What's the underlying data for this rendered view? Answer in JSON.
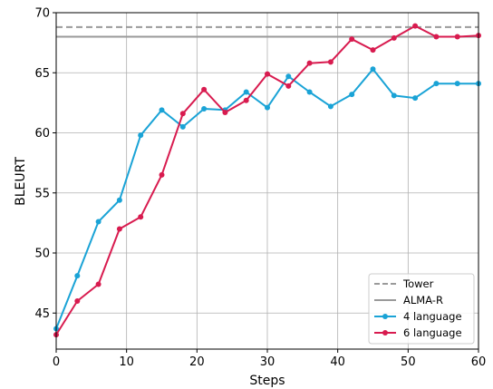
{
  "chart_data": {
    "type": "line",
    "xlabel": "Steps",
    "ylabel": "BLEURT",
    "xlim": [
      0,
      60
    ],
    "ylim": [
      42,
      70
    ],
    "xticks": [
      0,
      10,
      20,
      30,
      40,
      50,
      60
    ],
    "yticks": [
      45,
      50,
      55,
      60,
      65,
      70
    ],
    "grid": true,
    "legend_position": "bottom-right",
    "reference_lines": [
      {
        "name": "Tower",
        "y": 68.8,
        "color": "#9a9a9a",
        "style": "dashed"
      },
      {
        "name": "ALMA-R",
        "y": 68.0,
        "color": "#9a9a9a",
        "style": "solid"
      }
    ],
    "series": [
      {
        "name": "4 language",
        "color": "#1aa3d6",
        "x": [
          0,
          3,
          6,
          9,
          12,
          15,
          18,
          21,
          24,
          27,
          30,
          33,
          36,
          39,
          42,
          45,
          48,
          51,
          54,
          57,
          60
        ],
        "y": [
          43.7,
          48.1,
          52.6,
          54.4,
          59.8,
          61.9,
          60.5,
          62.0,
          61.9,
          63.4,
          62.1,
          64.7,
          63.4,
          62.2,
          63.2,
          65.3,
          63.1,
          62.9,
          64.1,
          64.1,
          64.1
        ]
      },
      {
        "name": "6 language",
        "color": "#d81b4f",
        "x": [
          0,
          3,
          6,
          9,
          12,
          15,
          18,
          21,
          24,
          27,
          30,
          33,
          36,
          39,
          42,
          45,
          48,
          51,
          54,
          57,
          60
        ],
        "y": [
          43.2,
          46.0,
          47.4,
          52.0,
          53.0,
          56.5,
          61.6,
          63.6,
          61.7,
          62.7,
          64.9,
          63.9,
          65.8,
          65.9,
          67.8,
          66.9,
          67.9,
          68.9,
          68.0,
          68.0,
          68.1
        ]
      }
    ]
  }
}
